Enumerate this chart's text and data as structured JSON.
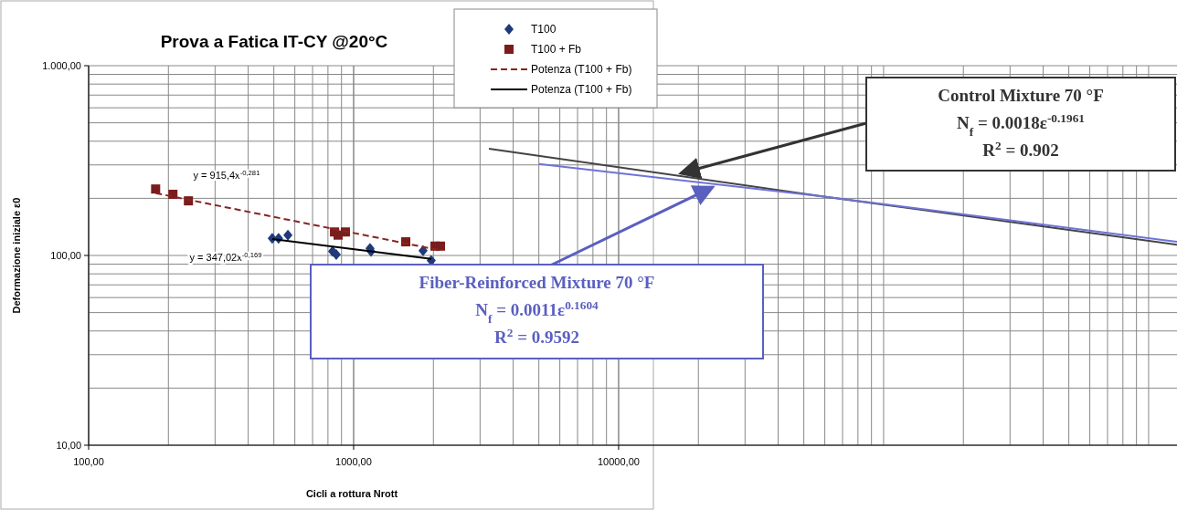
{
  "chart_data": {
    "type": "scatter",
    "title": "Prova  a Fatica IT-CY @20°C",
    "xlabel": "Cicli a rottura Nrott",
    "ylabel": "Deformazione iniziale ε0",
    "log": "xy",
    "grid": true,
    "legend": "top",
    "xlim": [
      100,
      1280000
    ],
    "xticks": [
      {
        "value": 100,
        "label": "100,00"
      },
      {
        "value": 1000,
        "label": "1000,00"
      },
      {
        "value": 10000,
        "label": "10000,00"
      }
    ],
    "ylim": [
      10,
      1000
    ],
    "yticks": [
      {
        "value": 10,
        "label": "10,00"
      },
      {
        "value": 100,
        "label": "100,00"
      },
      {
        "value": 1000,
        "label": "1.000,00"
      }
    ],
    "series": [
      {
        "name": "T100",
        "marker": "diamond",
        "color": "#1f3a7a",
        "x": [
          493,
          521,
          565,
          833,
          860,
          1153,
          1163,
          1828,
          1963
        ],
        "values": [
          123,
          123,
          128,
          105,
          101,
          109,
          105,
          106,
          94
        ]
      },
      {
        "name": "T100 + Fb",
        "marker": "square",
        "color": "#7b1c1c",
        "x": [
          179,
          208,
          238,
          847,
          874,
          931,
          1573,
          2028,
          2127
        ],
        "values": [
          224,
          210,
          194,
          133,
          128,
          133,
          118,
          112,
          112
        ]
      },
      {
        "name": "Potenza (T100 + Fb)",
        "type": "line",
        "line_style": "dashed",
        "color": "#8b2323",
        "x": [
          179,
          2150
        ],
        "values": [
          213,
          106
        ]
      },
      {
        "name": "Potenza (T100 + Fb)",
        "type": "line",
        "line_style": "solid",
        "color": "#000000",
        "x": [
          493,
          1963
        ],
        "values": [
          122,
          96
        ]
      },
      {
        "type": "line",
        "line_style": "solid",
        "color": "#444444",
        "x": [
          3240,
          58700,
          1280000
        ],
        "values": [
          365,
          205,
          114
        ]
      },
      {
        "type": "line",
        "line_style": "solid",
        "color": "#6f72d8",
        "x": [
          5010,
          58700,
          1280000
        ],
        "values": [
          303,
          205,
          118
        ]
      }
    ],
    "annotations": [
      "y = 915,4x$^{-0,281}$",
      "y = 347,02x$^{-0,169}$",
      "Control Mixture 70 °F\nN$_{f}$ = 0.0018ε$^{-0.1961}$\nR$^{2}$ = 0.902",
      "Fiber-Reinforced Mixture 70 °F\nN$_{f}$ = 0.0011ε$^{0.1604}$\nR$^{2}$ = 0.9592"
    ]
  }
}
